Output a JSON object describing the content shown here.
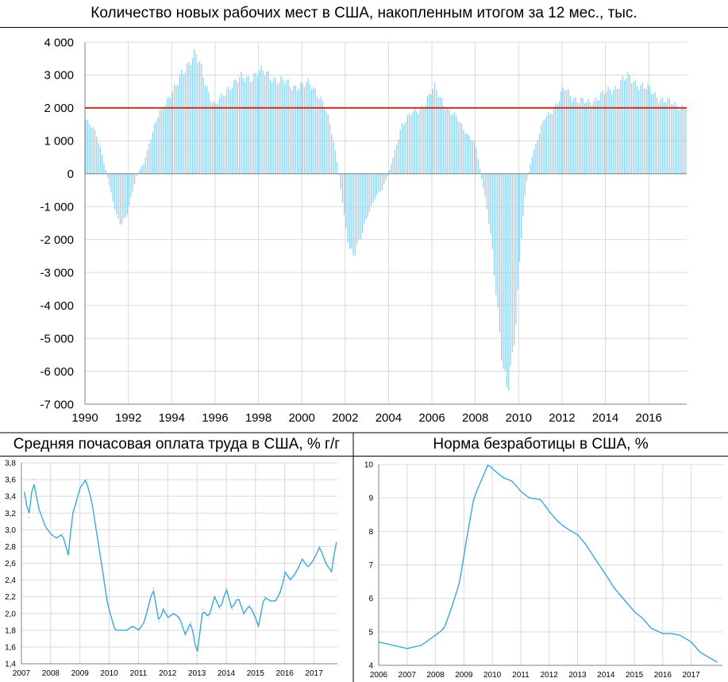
{
  "chart_data": [
    {
      "type": "bar",
      "title": "Количество новых рабочих мест в США, накопленным итогом за 12 мес., тыс.",
      "xlabel": "",
      "ylabel": "",
      "ylim": [
        -7000,
        4000
      ],
      "yticks": [
        4000,
        3000,
        2000,
        1000,
        0,
        -1000,
        -2000,
        -3000,
        -4000,
        -5000,
        -6000,
        -7000
      ],
      "ytick_labels": [
        "4 000",
        "3 000",
        "2 000",
        "1 000",
        "0",
        "-1 000",
        "-2 000",
        "-3 000",
        "-4 000",
        "-5 000",
        "-6 000",
        "-7 000"
      ],
      "xlim": [
        1990,
        2017.75
      ],
      "xtick_labels": [
        "1990",
        "1992",
        "1994",
        "1996",
        "1998",
        "2000",
        "2002",
        "2004",
        "2006",
        "2008",
        "2010",
        "2012",
        "2014",
        "2016"
      ],
      "reference_line": {
        "value": 2000,
        "color": "#d62d20"
      },
      "bar_color": "#8fd3f0",
      "grid": true,
      "keypoints": [
        [
          1990.0,
          1650
        ],
        [
          1990.5,
          1250
        ],
        [
          1990.75,
          700
        ],
        [
          1991.0,
          0
        ],
        [
          1991.25,
          -700
        ],
        [
          1991.5,
          -1350
        ],
        [
          1991.67,
          -1580
        ],
        [
          1991.9,
          -1350
        ],
        [
          1992.1,
          -800
        ],
        [
          1992.4,
          0
        ],
        [
          1992.7,
          300
        ],
        [
          1993.0,
          1000
        ],
        [
          1993.4,
          1800
        ],
        [
          1993.8,
          2300
        ],
        [
          1994.2,
          2600
        ],
        [
          1994.5,
          3100
        ],
        [
          1994.9,
          3550
        ],
        [
          1995.1,
          3600
        ],
        [
          1995.4,
          3100
        ],
        [
          1995.7,
          2500
        ],
        [
          1996.0,
          2050
        ],
        [
          1996.3,
          2300
        ],
        [
          1996.7,
          2700
        ],
        [
          1997.0,
          2850
        ],
        [
          1997.5,
          2900
        ],
        [
          1998.0,
          3100
        ],
        [
          1998.5,
          3000
        ],
        [
          1999.0,
          2800
        ],
        [
          1999.5,
          2700
        ],
        [
          2000.0,
          2650
        ],
        [
          2000.4,
          2750
        ],
        [
          2000.7,
          2500
        ],
        [
          2001.0,
          2100
        ],
        [
          2001.3,
          1500
        ],
        [
          2001.6,
          500
        ],
        [
          2001.8,
          -500
        ],
        [
          2002.0,
          -1500
        ],
        [
          2002.2,
          -2200
        ],
        [
          2002.4,
          -2500
        ],
        [
          2002.7,
          -2000
        ],
        [
          2003.0,
          -1300
        ],
        [
          2003.4,
          -700
        ],
        [
          2003.7,
          -500
        ],
        [
          2004.0,
          0
        ],
        [
          2004.3,
          700
        ],
        [
          2004.6,
          1500
        ],
        [
          2005.0,
          1800
        ],
        [
          2005.4,
          1900
        ],
        [
          2005.8,
          2300
        ],
        [
          2006.1,
          2600
        ],
        [
          2006.4,
          2300
        ],
        [
          2006.8,
          1900
        ],
        [
          2007.2,
          1650
        ],
        [
          2007.6,
          1250
        ],
        [
          2008.0,
          900
        ],
        [
          2008.25,
          0
        ],
        [
          2008.5,
          -900
        ],
        [
          2008.75,
          -2100
        ],
        [
          2009.0,
          -3800
        ],
        [
          2009.2,
          -5300
        ],
        [
          2009.35,
          -6300
        ],
        [
          2009.5,
          -6700
        ],
        [
          2009.7,
          -5800
        ],
        [
          2009.9,
          -4200
        ],
        [
          2010.1,
          -2000
        ],
        [
          2010.35,
          -300
        ],
        [
          2010.6,
          500
        ],
        [
          2010.9,
          1100
        ],
        [
          2011.2,
          1700
        ],
        [
          2011.6,
          2000
        ],
        [
          2011.9,
          2250
        ],
        [
          2012.1,
          2600
        ],
        [
          2012.4,
          2400
        ],
        [
          2012.8,
          2200
        ],
        [
          2013.2,
          2150
        ],
        [
          2013.6,
          2300
        ],
        [
          2014.0,
          2450
        ],
        [
          2014.4,
          2600
        ],
        [
          2014.8,
          2850
        ],
        [
          2015.1,
          2900
        ],
        [
          2015.5,
          2750
        ],
        [
          2016.0,
          2550
        ],
        [
          2016.4,
          2350
        ],
        [
          2016.8,
          2200
        ],
        [
          2017.2,
          2100
        ],
        [
          2017.6,
          2050
        ],
        [
          2017.75,
          2050
        ]
      ]
    },
    {
      "type": "line",
      "title": "Средняя почасовая оплата труда в США, % г/г",
      "xlabel": "",
      "ylabel": "",
      "ylim": [
        1.4,
        3.8
      ],
      "yticks": [
        3.8,
        3.6,
        3.4,
        3.2,
        3.0,
        2.8,
        2.6,
        2.4,
        2.2,
        2.0,
        1.8,
        1.6,
        1.4
      ],
      "ytick_labels": [
        "3,8",
        "3,6",
        "3,4",
        "3,2",
        "3,0",
        "2,8",
        "2,6",
        "2,4",
        "2,2",
        "2,0",
        "1,8",
        "1,6",
        "1,4"
      ],
      "xlim": [
        2007,
        2017.8
      ],
      "xtick_labels": [
        "2007",
        "2008",
        "2009",
        "2010",
        "2011",
        "2012",
        "2013",
        "2014",
        "2015",
        "2016",
        "2017"
      ],
      "line_color": "#3aa9d8",
      "grid": true,
      "x": [
        2007.1,
        2007.25,
        2007.4,
        2007.6,
        2007.8,
        2008.0,
        2008.2,
        2008.4,
        2008.6,
        2008.75,
        2008.85,
        2009.0,
        2009.2,
        2009.4,
        2009.6,
        2009.8,
        2009.95,
        2010.2,
        2010.4,
        2010.6,
        2010.8,
        2011.0,
        2011.2,
        2011.5,
        2011.7,
        2011.85,
        2012.0,
        2012.2,
        2012.4,
        2012.6,
        2012.8,
        2013.0,
        2013.2,
        2013.4,
        2013.6,
        2013.8,
        2014.0,
        2014.2,
        2014.4,
        2014.6,
        2014.8,
        2015.0,
        2015.1,
        2015.3,
        2015.5,
        2015.7,
        2015.9,
        2016.0,
        2016.2,
        2016.4,
        2016.6,
        2016.8,
        2017.0,
        2017.2,
        2017.4,
        2017.6,
        2017.75
      ],
      "y": [
        3.45,
        3.15,
        3.6,
        3.25,
        3.05,
        2.95,
        2.9,
        2.95,
        2.7,
        3.2,
        3.3,
        3.5,
        3.6,
        3.35,
        2.9,
        2.45,
        2.1,
        1.8,
        1.8,
        1.8,
        1.85,
        1.8,
        1.9,
        2.3,
        1.9,
        2.05,
        1.95,
        2.0,
        1.95,
        1.75,
        1.9,
        1.5,
        2.05,
        1.95,
        2.2,
        2.05,
        2.3,
        2.05,
        2.2,
        2.0,
        2.1,
        1.95,
        1.85,
        2.2,
        2.15,
        2.15,
        2.3,
        2.5,
        2.4,
        2.5,
        2.65,
        2.55,
        2.65,
        2.8,
        2.6,
        2.5,
        2.85
      ]
    },
    {
      "type": "line",
      "title": "Норма безработицы в США, %",
      "xlabel": "",
      "ylabel": "",
      "ylim": [
        4,
        10
      ],
      "yticks": [
        10,
        9,
        8,
        7,
        6,
        5,
        4
      ],
      "ytick_labels": [
        "10",
        "9",
        "8",
        "7",
        "6",
        "5",
        "4"
      ],
      "xlim": [
        2006,
        2018.1
      ],
      "xtick_labels": [
        "2006",
        "2007",
        "2008",
        "2009",
        "2010",
        "2011",
        "2012",
        "2013",
        "2014",
        "2015",
        "2016",
        "2017"
      ],
      "line_color": "#3aa9d8",
      "grid": true,
      "x": [
        2006.0,
        2006.5,
        2007.0,
        2007.5,
        2008.0,
        2008.3,
        2008.6,
        2008.85,
        2009.1,
        2009.35,
        2009.6,
        2009.85,
        2010.1,
        2010.4,
        2010.7,
        2011.0,
        2011.3,
        2011.7,
        2012.0,
        2012.3,
        2012.6,
        2013.0,
        2013.3,
        2013.6,
        2014.0,
        2014.3,
        2014.6,
        2015.0,
        2015.3,
        2015.6,
        2016.0,
        2016.3,
        2016.6,
        2016.8,
        2017.0,
        2017.3,
        2017.6,
        2017.9
      ],
      "y": [
        4.7,
        4.6,
        4.5,
        4.6,
        4.9,
        5.1,
        5.8,
        6.5,
        7.8,
        9.0,
        9.5,
        10.0,
        9.8,
        9.6,
        9.5,
        9.2,
        9.0,
        8.95,
        8.6,
        8.3,
        8.1,
        7.9,
        7.6,
        7.2,
        6.7,
        6.3,
        6.0,
        5.6,
        5.4,
        5.1,
        4.95,
        4.95,
        4.9,
        4.8,
        4.7,
        4.4,
        4.25,
        4.1
      ]
    }
  ]
}
